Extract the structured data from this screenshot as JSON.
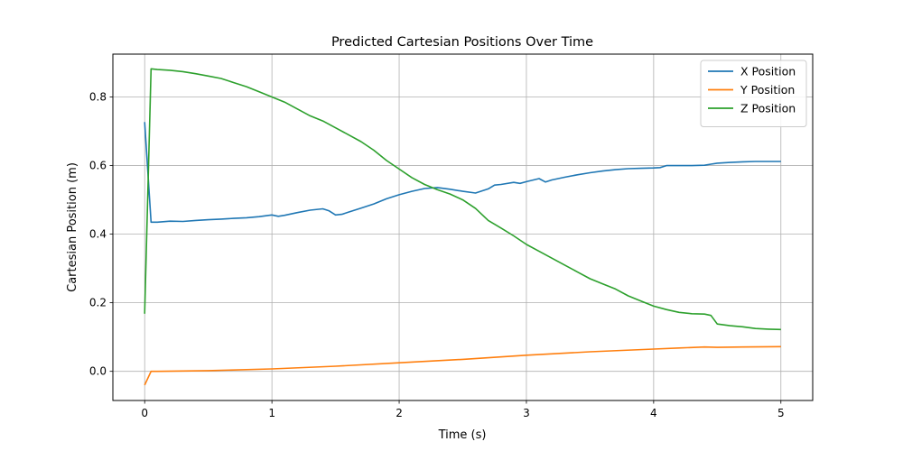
{
  "chart_data": {
    "type": "line",
    "title": "Predicted Cartesian Positions Over Time",
    "xlabel": "Time (s)",
    "ylabel": "Cartesian Position (m)",
    "xlim": [
      -0.25,
      5.25
    ],
    "ylim": [
      -0.085,
      0.925
    ],
    "xticks": [
      0,
      1,
      2,
      3,
      4,
      5
    ],
    "xtick_labels": [
      "0",
      "1",
      "2",
      "3",
      "4",
      "5"
    ],
    "yticks": [
      0.0,
      0.2,
      0.4,
      0.6,
      0.8
    ],
    "ytick_labels": [
      "0.0",
      "0.2",
      "0.4",
      "0.6",
      "0.8"
    ],
    "grid": true,
    "legend_position": "top-right",
    "series": [
      {
        "name": "X Position",
        "color": "#1f77b4",
        "x": [
          0,
          0.05,
          0.1,
          0.2,
          0.3,
          0.4,
          0.5,
          0.6,
          0.7,
          0.8,
          0.9,
          1.0,
          1.05,
          1.1,
          1.2,
          1.3,
          1.4,
          1.45,
          1.5,
          1.55,
          1.6,
          1.7,
          1.8,
          1.9,
          2.0,
          2.1,
          2.2,
          2.3,
          2.4,
          2.5,
          2.6,
          2.7,
          2.75,
          2.8,
          2.9,
          2.95,
          3.0,
          3.1,
          3.15,
          3.2,
          3.3,
          3.4,
          3.5,
          3.6,
          3.7,
          3.8,
          3.9,
          4.0,
          4.05,
          4.1,
          4.2,
          4.3,
          4.4,
          4.45,
          4.5,
          4.6,
          4.7,
          4.8,
          4.9,
          5.0
        ],
        "values": [
          0.727,
          0.435,
          0.435,
          0.438,
          0.437,
          0.44,
          0.442,
          0.444,
          0.446,
          0.448,
          0.451,
          0.456,
          0.452,
          0.455,
          0.463,
          0.47,
          0.474,
          0.468,
          0.456,
          0.458,
          0.464,
          0.476,
          0.488,
          0.503,
          0.515,
          0.525,
          0.533,
          0.536,
          0.531,
          0.525,
          0.52,
          0.532,
          0.543,
          0.545,
          0.551,
          0.548,
          0.553,
          0.562,
          0.552,
          0.558,
          0.566,
          0.573,
          0.579,
          0.584,
          0.588,
          0.591,
          0.592,
          0.593,
          0.594,
          0.6,
          0.6,
          0.6,
          0.601,
          0.604,
          0.607,
          0.609,
          0.611,
          0.612,
          0.612,
          0.612
        ]
      },
      {
        "name": "Y Position",
        "color": "#ff7f0e",
        "x": [
          0,
          0.05,
          0.1,
          0.5,
          1.0,
          1.5,
          2.0,
          2.5,
          3.0,
          3.5,
          4.0,
          4.2,
          4.4,
          4.5,
          4.7,
          5.0
        ],
        "values": [
          -0.04,
          0.0,
          0.0,
          0.002,
          0.007,
          0.015,
          0.025,
          0.035,
          0.047,
          0.057,
          0.065,
          0.068,
          0.071,
          0.07,
          0.071,
          0.072
        ]
      },
      {
        "name": "Z Position",
        "color": "#2ca02c",
        "x": [
          0,
          0.05,
          0.1,
          0.2,
          0.3,
          0.4,
          0.5,
          0.6,
          0.7,
          0.8,
          0.9,
          1.0,
          1.1,
          1.2,
          1.3,
          1.4,
          1.5,
          1.6,
          1.7,
          1.8,
          1.9,
          2.0,
          2.1,
          2.2,
          2.3,
          2.4,
          2.5,
          2.6,
          2.7,
          2.8,
          2.9,
          3.0,
          3.1,
          3.2,
          3.3,
          3.4,
          3.5,
          3.6,
          3.7,
          3.8,
          3.9,
          4.0,
          4.1,
          4.2,
          4.3,
          4.4,
          4.45,
          4.5,
          4.6,
          4.7,
          4.8,
          4.9,
          5.0
        ],
        "values": [
          0.168,
          0.882,
          0.88,
          0.878,
          0.874,
          0.868,
          0.861,
          0.854,
          0.842,
          0.83,
          0.815,
          0.8,
          0.785,
          0.765,
          0.745,
          0.73,
          0.71,
          0.69,
          0.67,
          0.645,
          0.615,
          0.59,
          0.565,
          0.545,
          0.53,
          0.517,
          0.5,
          0.475,
          0.44,
          0.418,
          0.395,
          0.37,
          0.35,
          0.33,
          0.31,
          0.29,
          0.27,
          0.255,
          0.24,
          0.22,
          0.205,
          0.19,
          0.18,
          0.172,
          0.168,
          0.167,
          0.163,
          0.138,
          0.133,
          0.13,
          0.125,
          0.123,
          0.122
        ]
      }
    ]
  }
}
